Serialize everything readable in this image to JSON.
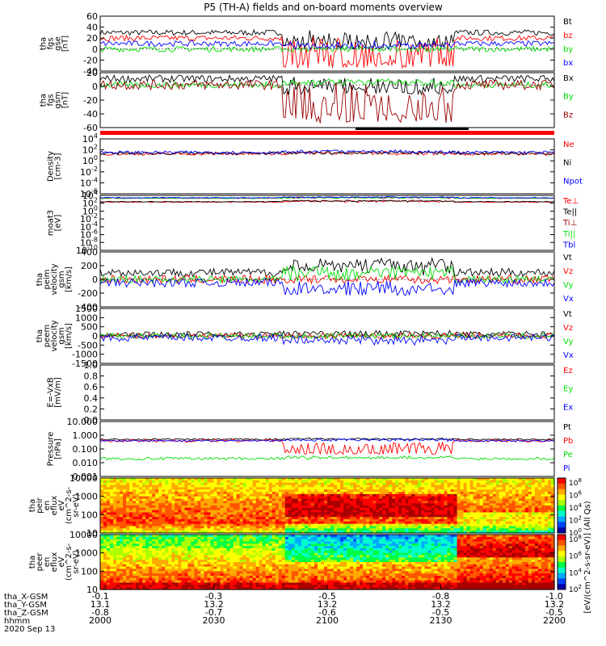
{
  "title": "P5 (TH-A) fields and on-board moments overview",
  "colorbar_unit": "[eV/(cm^2-s-sr-eV)] (All Qs)",
  "colors": {
    "black": "#000000",
    "red": "#ff0000",
    "green": "#00dd00",
    "blue": "#0000ff",
    "darkred": "#990000",
    "teal": "#008888"
  },
  "footer": {
    "row_labels": [
      "tha_X-GSM",
      "tha_Y-GSM",
      "tha_Z-GSM",
      "hhmm",
      "2020 Sep 13"
    ],
    "columns": [
      {
        "x": "-0.1",
        "y": "13.1",
        "z": "-0.8",
        "t": "2000"
      },
      {
        "x": "-0.3",
        "y": "13.2",
        "z": "-0.7",
        "t": "2030"
      },
      {
        "x": "-0.5",
        "y": "13.2",
        "z": "-0.6",
        "t": "2100"
      },
      {
        "x": "-0.8",
        "y": "13.2",
        "z": "-0.5",
        "t": "2130"
      },
      {
        "x": "-1.0",
        "y": "13.2",
        "z": "-0.5",
        "t": "2200"
      }
    ]
  },
  "chart_data": [
    {
      "type": "line",
      "id": "fgs",
      "ylabel": [
        "tha",
        "fgs",
        "gse",
        "[nT]"
      ],
      "ylim": [
        -40,
        60
      ],
      "ticks": [
        "60",
        "40",
        "20",
        "0",
        "-20",
        "-40"
      ],
      "series": [
        {
          "name": "Bt",
          "color": "black",
          "baseline": 30,
          "noise": 5,
          "drop_to": 5
        },
        {
          "name": "bz",
          "color": "red",
          "baseline": 20,
          "noise": 5,
          "drop_to": -30
        },
        {
          "name": "by",
          "color": "green",
          "baseline": 0,
          "noise": 5,
          "drop_to": 0
        },
        {
          "name": "bx",
          "color": "blue",
          "baseline": 10,
          "noise": 5,
          "drop_to": 5
        }
      ]
    },
    {
      "type": "line",
      "id": "fgs_gsm",
      "ylabel": [
        "tha",
        "fgs",
        "gsm",
        "[nT]"
      ],
      "ylim": [
        -70,
        20
      ],
      "ticks": [
        "20",
        "0",
        "-20",
        "-40",
        "-60"
      ],
      "series": [
        {
          "name": "Bx",
          "color": "black",
          "baseline": 10,
          "noise": 6,
          "drop_to": -10
        },
        {
          "name": "By",
          "color": "green",
          "baseline": 0,
          "noise": 5,
          "drop_to": 5
        },
        {
          "name": "Bz",
          "color": "darkred",
          "baseline": 0,
          "noise": 8,
          "drop_to": -55
        }
      ]
    },
    {
      "type": "line",
      "id": "density",
      "log": true,
      "ylabel": [
        "Density",
        "[cm-3]"
      ],
      "ylim": [
        -7,
        4
      ],
      "ticks": [
        "10^4",
        "10^2",
        "10^0",
        "10^-2",
        "10^-4",
        "10^-6"
      ],
      "series": [
        {
          "name": "Ne",
          "color": "red",
          "baseline": 1.0,
          "noise": 0.3,
          "drop_to": 1.2
        },
        {
          "name": "Ni",
          "color": "black",
          "baseline": 1.1,
          "noise": 0.3,
          "drop_to": 1.3
        },
        {
          "name": "Npot",
          "color": "blue",
          "baseline": 1.3,
          "noise": 0.3,
          "drop_to": 1.5
        }
      ]
    },
    {
      "type": "line",
      "id": "temp",
      "log": true,
      "ylabel": [
        "moat3",
        "[eV]"
      ],
      "ylim": [
        -10,
        4
      ],
      "ticks": [
        "10^4",
        "10^2",
        "10^0",
        "10^-2",
        "10^-4",
        "10^-6",
        "10^-8",
        "10^-10"
      ],
      "series": [
        {
          "name": "Te⊥",
          "color": "red",
          "baseline": 2.3,
          "noise": 0.1,
          "drop_to": 2.6
        },
        {
          "name": "Te||",
          "color": "black",
          "baseline": 2.4,
          "noise": 0.1,
          "drop_to": 2.7
        },
        {
          "name": "Ti⊥",
          "color": "darkred",
          "baseline": 3.3,
          "noise": 0.1,
          "drop_to": 3.5
        },
        {
          "name": "Ti||",
          "color": "green",
          "baseline": 3.3,
          "noise": 0.1,
          "drop_to": 3.5
        },
        {
          "name": "Tbl",
          "color": "blue",
          "baseline": 3.4,
          "noise": 0.1,
          "drop_to": 3.6
        }
      ]
    },
    {
      "type": "line",
      "id": "peim",
      "ylabel": [
        "tha",
        "peim",
        "velocity",
        "gsm",
        "[km/s]"
      ],
      "ylim": [
        -400,
        400
      ],
      "ticks": [
        "400",
        "200",
        "0",
        "-200",
        "-400"
      ],
      "series": [
        {
          "name": "Vt",
          "color": "black",
          "baseline": 100,
          "noise": 60,
          "drop_to": 250
        },
        {
          "name": "Vz",
          "color": "red",
          "baseline": 0,
          "noise": 60,
          "drop_to": 0
        },
        {
          "name": "Vy",
          "color": "green",
          "baseline": 0,
          "noise": 50,
          "drop_to": 150
        },
        {
          "name": "Vx",
          "color": "blue",
          "baseline": -50,
          "noise": 60,
          "drop_to": -180
        }
      ]
    },
    {
      "type": "line",
      "id": "peem",
      "ylabel": [
        "tha",
        "peem",
        "velocity",
        "gsm",
        "[km/s]"
      ],
      "ylim": [
        -1500,
        1500
      ],
      "ticks": [
        "1500",
        "1000",
        "500",
        "0",
        "-500",
        "-1000",
        "-1500"
      ],
      "series": [
        {
          "name": "Vt",
          "color": "black",
          "baseline": 100,
          "noise": 150,
          "drop_to": 150
        },
        {
          "name": "Vz",
          "color": "red",
          "baseline": 0,
          "noise": 150,
          "drop_to": 0
        },
        {
          "name": "Vy",
          "color": "green",
          "baseline": 0,
          "noise": 150,
          "drop_to": 0
        },
        {
          "name": "Vx",
          "color": "blue",
          "baseline": -100,
          "noise": 200,
          "drop_to": -300
        }
      ]
    },
    {
      "type": "line",
      "id": "efield",
      "ylabel": [
        "E=-VxB",
        "[mV/m]"
      ],
      "ylim": [
        0,
        1
      ],
      "ticks": [
        "1.0",
        "0.8",
        "0.6",
        "0.4",
        "0.2",
        "0.0"
      ],
      "series": [
        {
          "name": "Ez",
          "color": "red"
        },
        {
          "name": "Ey",
          "color": "green"
        },
        {
          "name": "Ex",
          "color": "blue"
        }
      ]
    },
    {
      "type": "line",
      "id": "pressure",
      "log": true,
      "ylabel": [
        "Pressure",
        "[nPa]"
      ],
      "ylim": [
        -3,
        1
      ],
      "ticks": [
        "10.000",
        "1.000",
        "0.100",
        "0.010",
        "0.001"
      ],
      "series": [
        {
          "name": "Pt",
          "color": "black",
          "baseline": -0.3,
          "noise": 0.05,
          "drop_to": -0.25
        },
        {
          "name": "Pb",
          "color": "red",
          "baseline": -0.4,
          "noise": 0.1,
          "drop_to": -1.3
        },
        {
          "name": "Pe",
          "color": "green",
          "baseline": -1.7,
          "noise": 0.1,
          "drop_to": -1.6
        },
        {
          "name": "Pi",
          "color": "blue",
          "baseline": -0.4,
          "noise": 0.05,
          "drop_to": -0.3
        }
      ]
    },
    {
      "type": "heatmap",
      "id": "peir",
      "ylabel": [
        "tha",
        "peir",
        "en",
        "eflux",
        "eV",
        "(cm^2-s-",
        "sr-eV)"
      ],
      "ylim": [
        1,
        4.3
      ],
      "ticks": [
        "10000",
        "1000",
        "100",
        "10"
      ],
      "colorbar_ticks": [
        "10^8",
        "10^6",
        "10^4",
        "10^2",
        "10^0"
      ]
    },
    {
      "type": "heatmap",
      "id": "peer",
      "ylabel": [
        "tha",
        "peer",
        "en",
        "eflux",
        "eV",
        "(cm^2-s-",
        "sr-eV)"
      ],
      "ylim": [
        0.8,
        4.3
      ],
      "ticks": [
        "10000",
        "1000",
        "100",
        "10"
      ],
      "colorbar_ticks": [
        "10^8",
        "10^6",
        "10^4",
        "10^2"
      ]
    }
  ]
}
